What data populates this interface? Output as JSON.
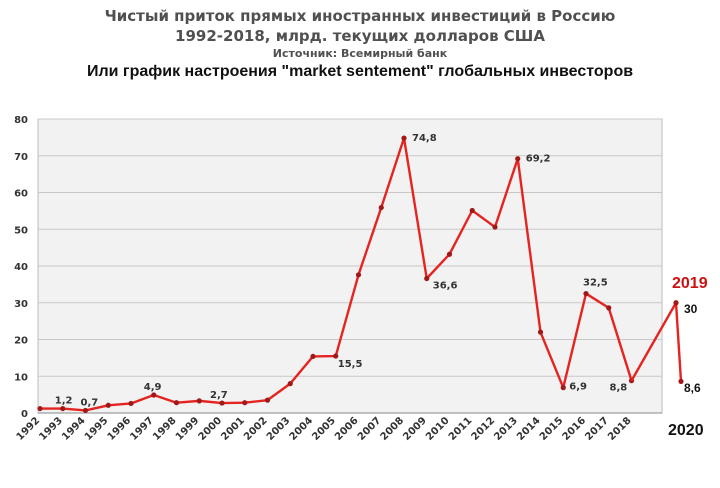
{
  "header": {
    "title_line1": "Чистый приток прямых иностранных инвестиций в Россию",
    "title_line2": "1992-2018, млрд. текущих долларов США",
    "source": "Источник: Всемирный банк",
    "subtitle": "Или график настроения \"market sentement\" глобальных инвесторов"
  },
  "chart_data": {
    "type": "line",
    "title": "Чистый приток прямых иностранных инвестиций в Россию 1992-2018, млрд. текущих долларов США",
    "xlabel": "",
    "ylabel": "",
    "ylim": [
      0,
      80
    ],
    "yticks": [
      "0",
      "10",
      "20",
      "30",
      "40",
      "50",
      "60",
      "70",
      "80"
    ],
    "grid": "horizontal",
    "categories": [
      "1992",
      "1993",
      "1994",
      "1995",
      "1996",
      "1997",
      "1998",
      "1999",
      "2000",
      "2001",
      "2002",
      "2003",
      "2004",
      "2005",
      "2006",
      "2007",
      "2008",
      "2009",
      "2010",
      "2011",
      "2012",
      "2013",
      "2014",
      "2015",
      "2016",
      "2017",
      "2018"
    ],
    "values": [
      1.2,
      1.2,
      0.7,
      2.1,
      2.6,
      4.9,
      2.8,
      3.3,
      2.7,
      2.8,
      3.5,
      8.0,
      15.4,
      15.5,
      37.6,
      55.9,
      74.8,
      36.6,
      43.2,
      55.1,
      50.6,
      69.2,
      22.0,
      6.9,
      32.5,
      28.6,
      8.8
    ],
    "labels": [
      {
        "index": 1,
        "text": "1,2"
      },
      {
        "index": 2,
        "text": "0,7"
      },
      {
        "index": 5,
        "text": "4,9"
      },
      {
        "index": 8,
        "text": "2,7"
      },
      {
        "index": 13,
        "text": "15,5"
      },
      {
        "index": 16,
        "text": "74,8"
      },
      {
        "index": 17,
        "text": "36,6"
      },
      {
        "index": 21,
        "text": "69,2"
      },
      {
        "index": 23,
        "text": "6,9"
      },
      {
        "index": 24,
        "text": "32,5"
      },
      {
        "index": 26,
        "text": "8,8"
      }
    ],
    "extension": {
      "points": [
        {
          "year": "2019",
          "value": 30,
          "label": "30"
        },
        {
          "year": "2020",
          "value": 8.6,
          "label": "8,6"
        }
      ]
    },
    "colors": {
      "line": "#e52421",
      "marker": "#a01818",
      "plot_bg": "#f2f2f2",
      "grid": "#c8c8c8",
      "accent_label": "#cc1111"
    }
  }
}
